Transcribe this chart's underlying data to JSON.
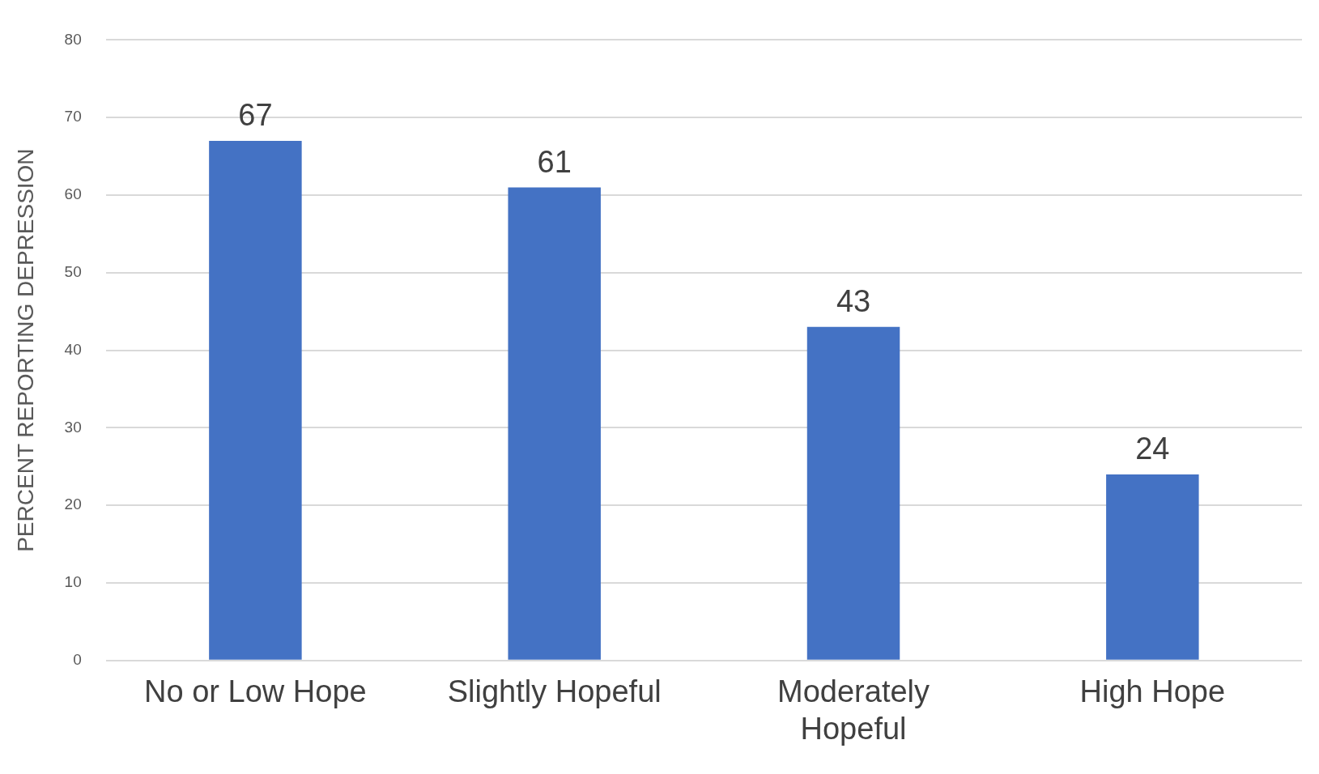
{
  "chart_data": {
    "type": "bar",
    "ylabel": "PERCENT REPORTING DEPRESSION",
    "categories": [
      "No or Low Hope",
      "Slightly Hopeful",
      "Moderately Hopeful",
      "High Hope"
    ],
    "values": [
      67,
      61,
      43,
      24
    ],
    "color": "#4472c4",
    "ylim": [
      0,
      80
    ],
    "yticks": [
      0,
      10,
      20,
      30,
      40,
      50,
      60,
      70,
      80
    ],
    "grid": "y",
    "data_labels": true
  }
}
